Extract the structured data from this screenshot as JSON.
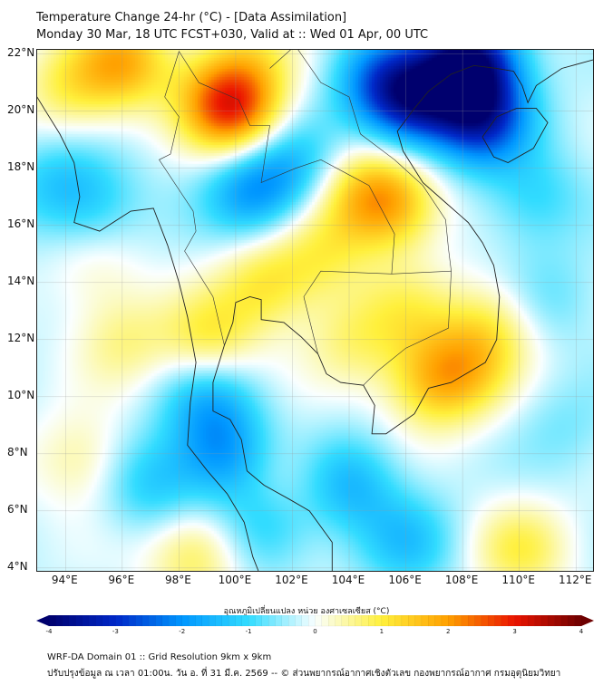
{
  "header": {
    "title": "Temperature Change 24-hr (°C) - [Data Assimilation]",
    "subtitle": "Monday 30 Mar, 18 UTC FCST+030, Valid at :: Wed 01 Apr, 00 UTC"
  },
  "map": {
    "lat_labels": [
      "22°N",
      "20°N",
      "18°N",
      "16°N",
      "14°N",
      "12°N",
      "10°N",
      "8°N",
      "6°N",
      "4°N"
    ],
    "lat_values": [
      22,
      20,
      18,
      16,
      14,
      12,
      10,
      8,
      6,
      4
    ],
    "lon_labels": [
      "94°E",
      "96°E",
      "98°E",
      "100°E",
      "102°E",
      "104°E",
      "106°E",
      "108°E",
      "110°E",
      "112°E"
    ],
    "lon_values": [
      94,
      96,
      98,
      100,
      102,
      104,
      106,
      108,
      110,
      112
    ],
    "extent": {
      "lon": [
        93.0,
        112.6
      ],
      "lat": [
        3.9,
        22.15
      ]
    },
    "field_anomalies": [
      {
        "lon": 96,
        "lat": 21.8,
        "value": 1.9
      },
      {
        "lon": 100,
        "lat": 20,
        "value": 2.2
      },
      {
        "lon": 99.3,
        "lat": 20.6,
        "value": 1.2
      },
      {
        "lon": 94,
        "lat": 20.8,
        "value": 1.0
      },
      {
        "lon": 105.5,
        "lat": 16.8,
        "value": 1.7
      },
      {
        "lon": 104.3,
        "lat": 17.2,
        "value": 1.1
      },
      {
        "lon": 101,
        "lat": 14,
        "value": 1.2
      },
      {
        "lon": 99,
        "lat": 12,
        "value": 1.3
      },
      {
        "lon": 96,
        "lat": 12,
        "value": 0.8
      },
      {
        "lon": 108,
        "lat": 11,
        "value": 1.2
      },
      {
        "lon": 106.8,
        "lat": 10.5,
        "value": 1.3
      },
      {
        "lon": 109,
        "lat": 12.5,
        "value": 1.0
      },
      {
        "lon": 110,
        "lat": 4.7,
        "value": 1.1
      },
      {
        "lon": 94.5,
        "lat": 7.8,
        "value": 0.8
      },
      {
        "lon": 106,
        "lat": 13,
        "value": 0.8
      },
      {
        "lon": 104,
        "lat": 12,
        "value": 0.8
      },
      {
        "lon": 95,
        "lat": 14.5,
        "value": 0.5
      },
      {
        "lon": 100.5,
        "lat": 22,
        "value": 0.8
      },
      {
        "lon": 98.5,
        "lat": 4.5,
        "value": 1.2
      },
      {
        "lon": 101.5,
        "lat": 7,
        "value": 0.5
      },
      {
        "lon": 103,
        "lat": 15,
        "value": 0.9
      },
      {
        "lon": 108.2,
        "lat": 21.8,
        "value": -3.5
      },
      {
        "lon": 106.2,
        "lat": 20.4,
        "value": -2.6
      },
      {
        "lon": 108.6,
        "lat": 19.8,
        "value": -2.6
      },
      {
        "lon": 105,
        "lat": 21.2,
        "value": -1.5
      },
      {
        "lon": 100.5,
        "lat": 17.3,
        "value": -1.6
      },
      {
        "lon": 102,
        "lat": 18.2,
        "value": -1.0
      },
      {
        "lon": 99,
        "lat": 10,
        "value": -1.2
      },
      {
        "lon": 99.5,
        "lat": 8,
        "value": -1.5
      },
      {
        "lon": 104,
        "lat": 7,
        "value": -1.2
      },
      {
        "lon": 101,
        "lat": 5.5,
        "value": -1.0
      },
      {
        "lon": 106,
        "lat": 5,
        "value": -1.0
      },
      {
        "lon": 110.5,
        "lat": 17,
        "value": -0.8
      },
      {
        "lon": 95,
        "lat": 16.8,
        "value": -0.8
      },
      {
        "lon": 97,
        "lat": 7,
        "value": -1.0
      },
      {
        "lon": 111,
        "lat": 13.5,
        "value": -0.5
      },
      {
        "lon": 93.5,
        "lat": 17.5,
        "value": -0.8
      },
      {
        "lon": 111.5,
        "lat": 9,
        "value": -0.4
      }
    ]
  },
  "colorbar": {
    "label": "อุณหภูมิเปลี่ยนแปลง หน่วย องศาเซลเซียส (°C)",
    "ticks": [
      "-4",
      "-3",
      "-2",
      "-1",
      "0",
      "1",
      "2",
      "3",
      "4"
    ],
    "range": [
      -4,
      4
    ]
  },
  "footer": {
    "line1": "WRF-DA Domain 01 :: Grid Resolution 9km x 9km",
    "line2": "ปรับปรุงข้อมูล ณ เวลา 01:00น. วัน อ. ที่ 31 มี.ค. 2569 -- © ส่วนพยากรณ์อากาศเชิงตัวเลข กองพยากรณ์อากาศ กรมอุตุนิยมวิทยา"
  }
}
